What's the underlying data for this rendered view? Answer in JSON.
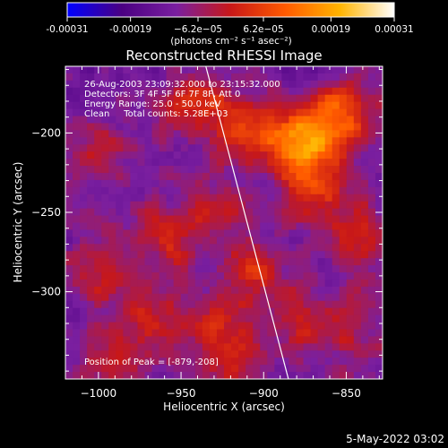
{
  "chart_data": {
    "type": "heatmap",
    "title": "Reconstructed RHESSI Image",
    "xlabel": "Heliocentric X (arcsec)",
    "ylabel": "Heliocentric Y (arcsec)",
    "xlim": [
      -1020,
      -828
    ],
    "ylim": [
      -355,
      -158
    ],
    "x_ticks": [
      -1000,
      -950,
      -900,
      -850
    ],
    "y_ticks": [
      -200,
      -250,
      -300
    ],
    "x_tick_labels": [
      "−1000",
      "−950",
      "−900",
      "−850"
    ],
    "y_tick_labels": [
      "−200",
      "−250",
      "−300"
    ],
    "colorbar": {
      "min": -0.00031,
      "max": 0.00031,
      "ticks": [
        -0.00031,
        -0.00019,
        -6.2e-05,
        6.2e-05,
        0.00019,
        0.00031
      ],
      "tick_labels": [
        "-0.00031",
        "-0.00019",
        "−6.2e−05",
        "6.2e−05",
        "0.00019",
        "0.00031"
      ],
      "unit_label": "(photons cm⁻² s⁻¹ asec⁻²)",
      "colormap": [
        "#0000ff",
        "#4b0082",
        "#7a1fa0",
        "#c81818",
        "#ff5a00",
        "#ffb400",
        "#ffffff"
      ]
    },
    "annotations": [
      "26-Aug-2003 23:09:32.000 to 23:15:32.000",
      "Detectors: 3F 4F 5F 6F 7F 8F, Att 0",
      "Energy Range: 25.0 - 50.0 keV",
      "Clean     Total counts: 5.28E+03",
      "Position of Peak = [-879,-208]"
    ],
    "peak": [
      -879,
      -208
    ],
    "limb_line": {
      "x": [
        -935,
        -885
      ],
      "y": [
        -158,
        -355
      ]
    },
    "hot_regions": [
      {
        "x": -879,
        "y": -208,
        "amp": 1.0
      },
      {
        "x": -855,
        "y": -190,
        "amp": 0.85
      },
      {
        "x": -870,
        "y": -235,
        "amp": 0.55
      },
      {
        "x": -940,
        "y": -180,
        "amp": 0.5
      },
      {
        "x": -910,
        "y": -195,
        "amp": 0.55
      },
      {
        "x": -960,
        "y": -270,
        "amp": 0.45
      },
      {
        "x": -935,
        "y": -245,
        "amp": 0.35
      },
      {
        "x": -905,
        "y": -285,
        "amp": 0.5
      },
      {
        "x": -970,
        "y": -318,
        "amp": 0.45
      },
      {
        "x": -925,
        "y": -320,
        "amp": 0.45
      },
      {
        "x": -880,
        "y": -320,
        "amp": 0.35
      },
      {
        "x": -1005,
        "y": -215,
        "amp": 0.35
      },
      {
        "x": -1000,
        "y": -290,
        "amp": 0.35
      },
      {
        "x": -840,
        "y": -265,
        "amp": 0.45
      },
      {
        "x": -850,
        "y": -320,
        "amp": 0.35
      },
      {
        "x": -990,
        "y": -345,
        "amp": 0.35
      },
      {
        "x": -915,
        "y": -350,
        "amp": 0.4
      }
    ]
  },
  "footer": {
    "date": "5-May-2022 03:02"
  }
}
